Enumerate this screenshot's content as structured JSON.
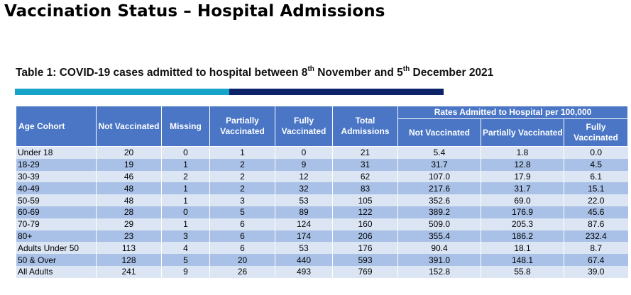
{
  "page_title": "Vaccination Status – Hospital Admissions",
  "caption": {
    "prefix": "Table 1: COVID-19 cases admitted to hospital between 8",
    "sup1": "th",
    "mid": " November and 5",
    "sup2": "th",
    "suffix": " December 2021"
  },
  "colors": {
    "bar_left": "#16a4c8",
    "bar_right": "#0c2369",
    "header_bg": "#4a76c5",
    "row_light": "#dce5f3",
    "row_dark": "#a9c1e6"
  },
  "table": {
    "headers": {
      "age": "Age Cohort",
      "not_vaccinated": "Not Vaccinated",
      "missing": "Missing",
      "partially": "Partially Vaccinated",
      "fully": "Fully Vaccinated",
      "total": "Total Admissions",
      "rates_group": "Rates Admitted to Hospital per 100,000",
      "rate_not": "Not Vaccinated",
      "rate_partial": "Partially Vaccinated",
      "rate_fully": "Fully Vaccinated"
    },
    "rows": [
      [
        "Under 18",
        "20",
        "0",
        "1",
        "0",
        "21",
        "5.4",
        "1.8",
        "0.0"
      ],
      [
        "18-29",
        "19",
        "1",
        "2",
        "9",
        "31",
        "31.7",
        "12.8",
        "4.5"
      ],
      [
        "30-39",
        "46",
        "2",
        "2",
        "12",
        "62",
        "107.0",
        "17.9",
        "6.1"
      ],
      [
        "40-49",
        "48",
        "1",
        "2",
        "32",
        "83",
        "217.6",
        "31.7",
        "15.1"
      ],
      [
        "50-59",
        "48",
        "1",
        "3",
        "53",
        "105",
        "352.6",
        "69.0",
        "22.0"
      ],
      [
        "60-69",
        "28",
        "0",
        "5",
        "89",
        "122",
        "389.2",
        "176.9",
        "45.6"
      ],
      [
        "70-79",
        "29",
        "1",
        "6",
        "124",
        "160",
        "509.0",
        "205.3",
        "87.6"
      ],
      [
        "80+",
        "23",
        "3",
        "6",
        "174",
        "206",
        "355.4",
        "186.2",
        "232.4"
      ],
      [
        "Adults Under 50",
        "113",
        "4",
        "6",
        "53",
        "176",
        "90.4",
        "18.1",
        "8.7"
      ],
      [
        "50 & Over",
        "128",
        "5",
        "20",
        "440",
        "593",
        "391.0",
        "148.1",
        "67.4"
      ],
      [
        "All Adults",
        "241",
        "9",
        "26",
        "493",
        "769",
        "152.8",
        "55.8",
        "39.0"
      ]
    ]
  }
}
